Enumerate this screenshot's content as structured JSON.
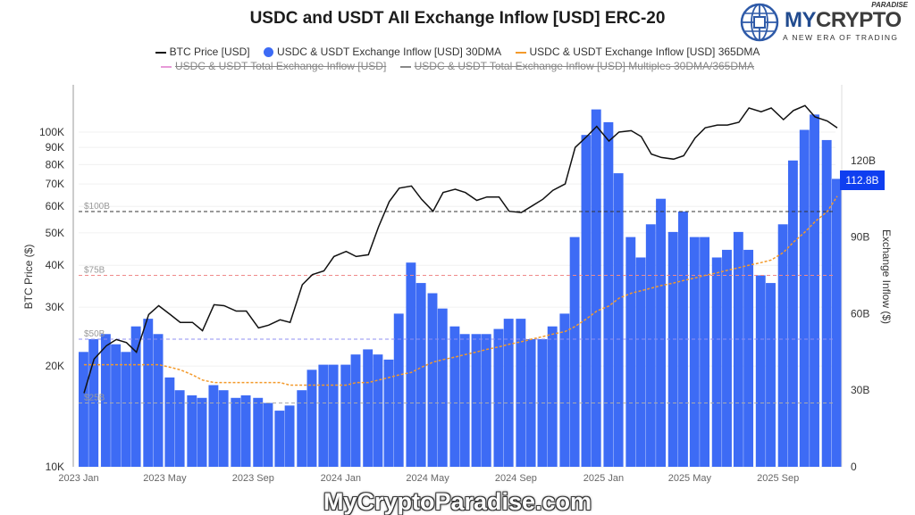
{
  "title": "USDC and USDT All Exchange Inflow [USD] ERC-20",
  "legend": {
    "btc": "BTC Price [USD]",
    "inflow30": "USDC & USDT Exchange Inflow [USD] 30DMA",
    "inflow365": "USDC & USDT Exchange Inflow [USD] 365DMA",
    "total": "USDC & USDT Total Exchange Inflow [USD]",
    "multiples": "USDC & USDT Total Exchange Inflow [USD] Multiples 30DMA/365DMA"
  },
  "logo": {
    "my": "MY",
    "crypto": "CRYPTO",
    "sub": "PARADISE",
    "tagline": "A NEW ERA OF TRADING"
  },
  "watermark": "MyCryptoParadise.com",
  "colors": {
    "btc": "#111111",
    "inflow30": "#3d6bf5",
    "inflow365": "#f39a2b",
    "badge": "#0f3ef0",
    "ref100": "#333333",
    "ref75": "#f08a8a",
    "ref50": "#8f8ff0",
    "ref25": "#aaaaaa"
  },
  "chart_data": {
    "type": "bar+line",
    "title": "USDC and USDT All Exchange Inflow [USD] ERC-20",
    "ylabel_left": "BTC Price ($)",
    "ylabel_right": "Exchange Inflow ($)",
    "left_axis": {
      "scale": "log",
      "range": [
        10000,
        150000
      ],
      "ticks": [
        "10K",
        "20K",
        "30K",
        "40K",
        "50K",
        "60K",
        "70K",
        "80K",
        "90K",
        "100K"
      ],
      "tick_values": [
        10000,
        20000,
        30000,
        40000,
        50000,
        60000,
        70000,
        80000,
        90000,
        100000
      ]
    },
    "right_axis": {
      "scale": "linear",
      "range": [
        0,
        150
      ],
      "ticks": [
        "0",
        "30B",
        "60B",
        "90B",
        "120B"
      ],
      "tick_values": [
        0,
        30,
        60,
        90,
        120
      ]
    },
    "x_ticks": [
      {
        "label": "2023 Jan",
        "date": "2023-01-01"
      },
      {
        "label": "2023 May",
        "date": "2023-05-01"
      },
      {
        "label": "2023 Sep",
        "date": "2023-09-01"
      },
      {
        "label": "2024 Jan",
        "date": "2024-01-01"
      },
      {
        "label": "2024 May",
        "date": "2024-05-01"
      },
      {
        "label": "2024 Sep",
        "date": "2024-09-01"
      },
      {
        "label": "2025 Jan",
        "date": "2025-01-01"
      },
      {
        "label": "2025 May",
        "date": "2025-05-01"
      },
      {
        "label": "2025 Sep",
        "date": "2025-09-01"
      }
    ],
    "x_range": [
      "2023-01-01",
      "2025-11-20"
    ],
    "reference_lines": [
      {
        "label": "$100B",
        "value": 100,
        "color": "#333333"
      },
      {
        "label": "$75B",
        "value": 75,
        "color": "#f08a8a"
      },
      {
        "label": "$50B",
        "value": 50,
        "color": "#8f8ff0"
      },
      {
        "label": "$25B",
        "value": 25,
        "color": "#aaaaaa"
      }
    ],
    "last_value_label": "112.8B",
    "grid": true,
    "legend_position": "top",
    "series": [
      {
        "name": "BTC Price [USD]",
        "axis": "left",
        "type": "line",
        "unit": "USD (thousands)",
        "values": [
          16.6,
          21,
          23,
          24,
          23.5,
          22,
          28.5,
          30.3,
          28.5,
          27,
          27,
          25.5,
          30.5,
          30.3,
          29.2,
          29.2,
          26,
          26.5,
          27.5,
          27,
          35,
          37.5,
          38.5,
          42.5,
          44,
          42.5,
          43,
          52,
          62,
          68,
          69,
          63,
          58,
          66,
          67.5,
          66,
          62.5,
          64,
          64,
          58,
          57.5,
          60,
          63,
          67,
          70,
          90,
          97,
          104,
          94,
          100,
          101,
          97,
          86,
          84,
          83,
          85,
          96,
          103,
          105,
          105,
          107,
          118,
          115,
          118,
          109,
          116,
          120,
          111,
          108,
          103
        ]
      },
      {
        "name": "USDC & USDT Exchange Inflow [USD] 30DMA",
        "axis": "right",
        "type": "bar",
        "unit": "USD billions",
        "values": [
          45,
          50,
          52,
          48,
          45,
          55,
          58,
          52,
          35,
          30,
          28,
          27,
          32,
          30,
          27,
          28,
          27,
          25,
          22,
          24,
          30,
          38,
          40,
          40,
          40,
          44,
          46,
          44,
          42,
          60,
          80,
          72,
          68,
          62,
          55,
          52,
          52,
          52,
          54,
          58,
          58,
          50,
          50,
          55,
          60,
          90,
          130,
          140,
          135,
          115,
          90,
          82,
          95,
          105,
          92,
          100,
          90,
          90,
          82,
          85,
          92,
          85,
          75,
          72,
          95,
          120,
          132,
          138,
          128,
          112.8
        ]
      },
      {
        "name": "USDC & USDT Exchange Inflow [USD] 365DMA",
        "axis": "right",
        "type": "line",
        "unit": "USD billions",
        "values": [
          40,
          40,
          40,
          40,
          40,
          40,
          40,
          40,
          39,
          38,
          36,
          34,
          33,
          33,
          33,
          33,
          33,
          33,
          33,
          32,
          32,
          32,
          32,
          32,
          32,
          33,
          33,
          34,
          35,
          36,
          37,
          39,
          41,
          42,
          43,
          44,
          45,
          46,
          47,
          48,
          49,
          50,
          51,
          52,
          53,
          55,
          58,
          61,
          63,
          66,
          68,
          69,
          70,
          71,
          72,
          73,
          74,
          75,
          76,
          77,
          78,
          79,
          80,
          81,
          84,
          88,
          92,
          96,
          100,
          106
        ]
      }
    ]
  }
}
